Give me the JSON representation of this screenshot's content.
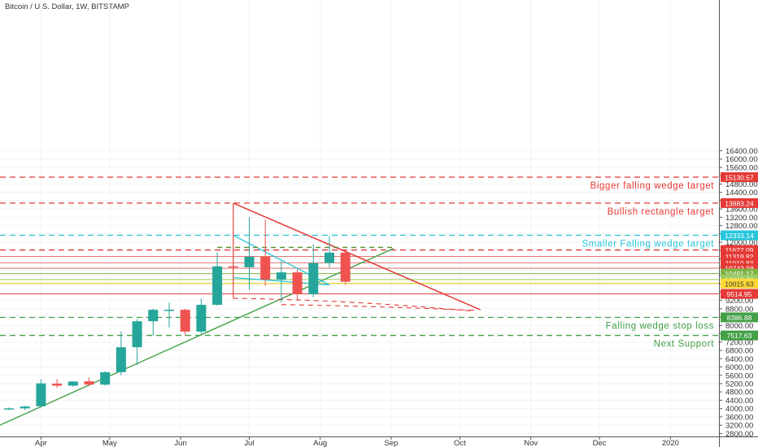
{
  "chart_data": {
    "type": "candlestick",
    "title": "Bitcoin / U.S. Dollar, 1W, BITSTAMP",
    "xlabel": "",
    "ylabel": "",
    "ylim": [
      2600,
      17000
    ],
    "x_tick_labels": [
      "Apr",
      "May",
      "Jun",
      "Jul",
      "Aug",
      "Sep",
      "Oct",
      "Nov",
      "Dec",
      "2020"
    ],
    "y_tick_labels": [
      "2800.00",
      "3200.00",
      "3600.00",
      "4000.00",
      "4400.00",
      "4800.00",
      "5200.00",
      "5600.00",
      "6000.00",
      "6400.00",
      "6800.00",
      "7200.00",
      "7600.00",
      "8000.00",
      "8400.00",
      "8800.00",
      "9200.00",
      "9600.00",
      "10000.00",
      "10400.00",
      "10800.00",
      "11200.00",
      "11600.00",
      "12000.00",
      "12400.00",
      "12800.00",
      "13200.00",
      "13600.00",
      "14000.00",
      "14400.00",
      "14800.00",
      "15200.00",
      "15600.00",
      "16000.00",
      "16400.00"
    ],
    "candles": [
      {
        "week": "2019-03-18",
        "open": 3990,
        "high": 4050,
        "low": 3930,
        "close": 4010
      },
      {
        "week": "2019-03-25",
        "open": 4010,
        "high": 4130,
        "low": 3930,
        "close": 4100
      },
      {
        "week": "2019-04-01",
        "open": 4110,
        "high": 5400,
        "low": 4100,
        "close": 5210
      },
      {
        "week": "2019-04-08",
        "open": 5200,
        "high": 5420,
        "low": 5000,
        "close": 5100
      },
      {
        "week": "2019-04-15",
        "open": 5100,
        "high": 5320,
        "low": 5060,
        "close": 5300
      },
      {
        "week": "2019-04-22",
        "open": 5310,
        "high": 5500,
        "low": 5100,
        "close": 5150
      },
      {
        "week": "2019-04-29",
        "open": 5150,
        "high": 5800,
        "low": 5100,
        "close": 5750
      },
      {
        "week": "2019-05-06",
        "open": 5750,
        "high": 7700,
        "low": 5600,
        "close": 6950
      },
      {
        "week": "2019-05-13",
        "open": 6950,
        "high": 8300,
        "low": 6100,
        "close": 8200
      },
      {
        "week": "2019-05-20",
        "open": 8200,
        "high": 8800,
        "low": 7500,
        "close": 8750
      },
      {
        "week": "2019-05-27",
        "open": 8750,
        "high": 9100,
        "low": 7900,
        "close": 8750
      },
      {
        "week": "2019-06-03",
        "open": 8750,
        "high": 8800,
        "low": 7500,
        "close": 7700
      },
      {
        "week": "2019-06-10",
        "open": 7700,
        "high": 9300,
        "low": 7600,
        "close": 8990
      },
      {
        "week": "2019-06-17",
        "open": 8990,
        "high": 11500,
        "low": 8950,
        "close": 10840
      },
      {
        "week": "2019-06-24",
        "open": 10840,
        "high": 13880,
        "low": 10300,
        "close": 10800
      },
      {
        "week": "2019-07-01",
        "open": 10800,
        "high": 13200,
        "low": 9700,
        "close": 11300
      },
      {
        "week": "2019-07-08",
        "open": 11300,
        "high": 13100,
        "low": 9900,
        "close": 10200
      },
      {
        "week": "2019-07-15",
        "open": 10200,
        "high": 11100,
        "low": 9100,
        "close": 10550
      },
      {
        "week": "2019-07-22",
        "open": 10550,
        "high": 10700,
        "low": 9250,
        "close": 9500
      },
      {
        "week": "2019-07-29",
        "open": 9500,
        "high": 11900,
        "low": 9350,
        "close": 11000
      },
      {
        "week": "2019-08-05",
        "open": 11000,
        "high": 12300,
        "low": 10800,
        "close": 11500
      },
      {
        "week": "2019-08-12",
        "open": 11500,
        "high": 11600,
        "low": 9950,
        "close": 10100
      }
    ],
    "levels": [
      {
        "value": 15130.57,
        "price_label": "15130.57",
        "text": "Bigger falling wedge target",
        "color": "#e53935",
        "style": "dashed"
      },
      {
        "value": 13883.24,
        "price_label": "13883.24",
        "text": "Bullish rectangle target",
        "color": "#e53935",
        "style": "dashed"
      },
      {
        "value": 12333.14,
        "price_label": "12333.14",
        "text": "Smaller Falling wedge target",
        "color": "#26c6da",
        "style": "dashed"
      },
      {
        "value": 11627.09,
        "price_label": "11627.09",
        "text": "",
        "color": "#e53935",
        "style": "dashed"
      },
      {
        "value": 11319.82,
        "price_label": "11319.82",
        "text": "",
        "color": "#e57373",
        "style": "solid"
      },
      {
        "value": 11010.83,
        "price_label": "11010.83",
        "text": "",
        "color": "#e57373",
        "style": "solid"
      },
      {
        "value": 10743.98,
        "price_label": "10743.98",
        "text": "",
        "color": "#e57373",
        "style": "solid"
      },
      {
        "value": 10491.17,
        "price_label": "10491.17",
        "text": "",
        "color": "#7cb342",
        "style": "solid"
      },
      {
        "value": 10210.28,
        "price_label": "10210.28",
        "text": "",
        "color": "#9ccc65",
        "style": "solid"
      },
      {
        "value": 10020.03,
        "price_label": "10020.03",
        "text": "",
        "color": "#7cb342",
        "style": "solid"
      },
      {
        "value": 10015.63,
        "price_label": "10015.63",
        "text": "",
        "color": "#fdd835",
        "style": "solid"
      },
      {
        "value": 9514.95,
        "price_label": "9514.95",
        "text": "",
        "color": "#e53935",
        "style": "solid"
      },
      {
        "value": 8386.88,
        "price_label": "8386.88",
        "text": "Falling wedge stop loss",
        "color": "#43a047",
        "style": "dashed"
      },
      {
        "value": 7517.63,
        "price_label": "7517.63",
        "text": "Next Support",
        "color": "#43a047",
        "style": "dashed"
      }
    ],
    "trendlines": [
      {
        "name": "uptrend",
        "from": [
          "2019-03-14",
          3200
        ],
        "to": [
          "2019-09-02",
          11700
        ],
        "color": "#43a047",
        "width": 1.4,
        "dash": false
      },
      {
        "name": "big-wedge-top",
        "from": [
          "2019-06-24",
          13880
        ],
        "to": [
          "2019-10-10",
          8750
        ],
        "color": "#e53935",
        "width": 1.5,
        "dash": false
      },
      {
        "name": "big-wedge-bottom",
        "from": [
          "2019-06-24",
          9300
        ],
        "to": [
          "2019-10-07",
          8680
        ],
        "color": "#e53935",
        "width": 1.1,
        "dash": true,
        "curve": true
      },
      {
        "name": "big-wedge-bottom-2",
        "from": [
          "2019-07-15",
          9000
        ],
        "to": [
          "2019-10-08",
          8720
        ],
        "color": "#e53935",
        "width": 1.1,
        "dash": true,
        "curve": true
      },
      {
        "name": "small-wedge-top",
        "from": [
          "2019-06-24",
          12333
        ],
        "to": [
          "2019-08-05",
          9950
        ],
        "color": "#26c6da",
        "width": 1.3,
        "dash": false
      },
      {
        "name": "small-wedge-bottom",
        "from": [
          "2019-06-24",
          10300
        ],
        "to": [
          "2019-08-05",
          9950
        ],
        "color": "#26c6da",
        "width": 1.3,
        "dash": false
      },
      {
        "name": "rectangle-top",
        "from": [
          "2019-06-17",
          11750
        ],
        "to": [
          "2019-09-02",
          11750
        ],
        "color": "#558b2f",
        "width": 1.4,
        "dash": true
      },
      {
        "name": "rectangle-stem",
        "from": [
          "2019-06-24",
          9300
        ],
        "to": [
          "2019-06-24",
          13880
        ],
        "color": "#e53935",
        "width": 1.1,
        "dash": false
      }
    ],
    "grid": true,
    "legend": "none",
    "colors": {
      "up": "#26a69a",
      "down": "#ef5350",
      "label_red": "#e53935",
      "label_cyan": "#26c6da",
      "label_green": "#43a047"
    }
  }
}
